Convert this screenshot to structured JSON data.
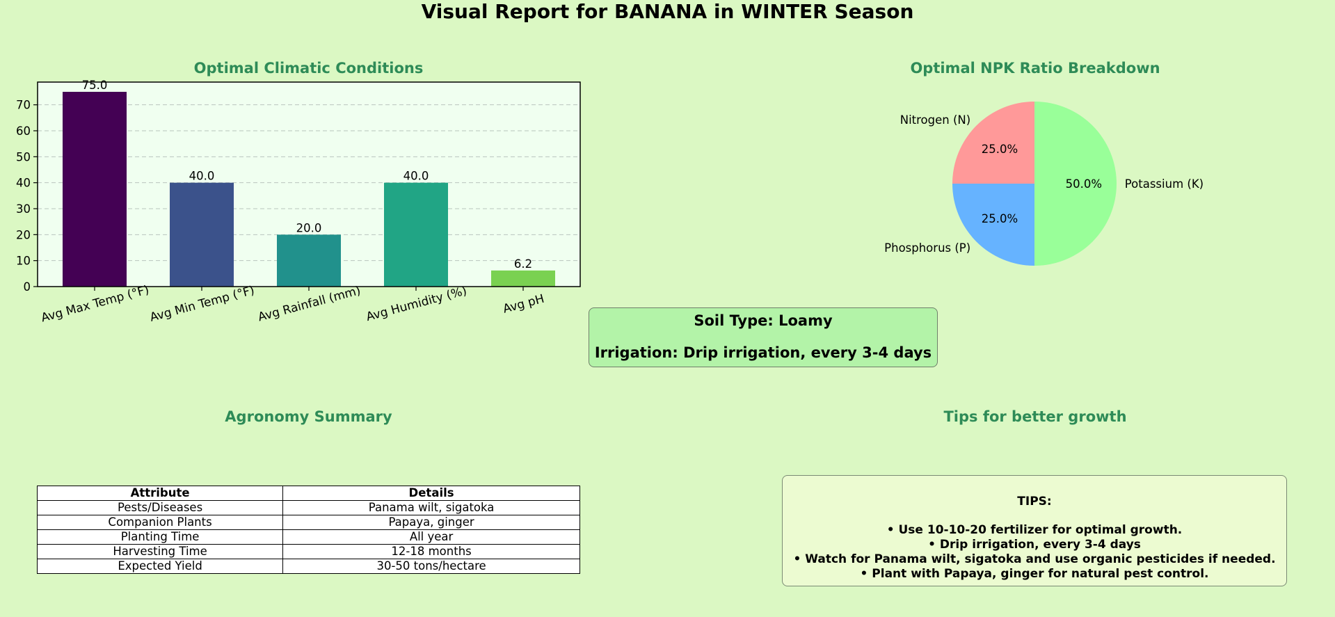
{
  "title": "Visual Report for BANANA in WINTER Season",
  "chart_data": [
    {
      "type": "bar",
      "title": "Optimal Climatic Conditions",
      "categories": [
        "Avg Max Temp (°F)",
        "Avg Min Temp (°F)",
        "Avg Rainfall (mm)",
        "Avg Humidity (%)",
        "Avg pH"
      ],
      "values": [
        75.0,
        40.0,
        20.0,
        40.0,
        6.2
      ],
      "value_labels": [
        "75.0",
        "40.0",
        "20.0",
        "40.0",
        "6.2"
      ],
      "yticks": [
        0,
        10,
        20,
        30,
        40,
        50,
        60,
        70
      ],
      "ylim": [
        0,
        78.75
      ],
      "grid": true,
      "colors": [
        "#440154",
        "#3b528b",
        "#21918c",
        "#21a585",
        "#7ad151"
      ],
      "background": "#f0fff0"
    },
    {
      "type": "pie",
      "title": "Optimal NPK Ratio Breakdown",
      "labels": [
        "Nitrogen (N)",
        "Phosphorus (P)",
        "Potassium (K)"
      ],
      "values": [
        25.0,
        25.0,
        50.0
      ],
      "pct_labels": [
        "25.0%",
        "25.0%",
        "50.0%"
      ],
      "colors": [
        "#ff9999",
        "#66b3ff",
        "#99ff99"
      ]
    }
  ],
  "info": {
    "soil": "Soil Type: Loamy",
    "irrigation": "Irrigation: Drip irrigation, every 3-4 days"
  },
  "summary": {
    "title": "Agronomy Summary",
    "headers": [
      "Attribute",
      "Details"
    ],
    "rows": [
      [
        "Pests/Diseases",
        "Panama wilt, sigatoka"
      ],
      [
        "Companion Plants",
        "Papaya, ginger"
      ],
      [
        "Planting Time",
        "All year"
      ],
      [
        "Harvesting Time",
        "12-18 months"
      ],
      [
        "Expected Yield",
        "30-50 tons/hectare"
      ]
    ]
  },
  "tips": {
    "panel_title": "Tips for better growth",
    "heading": "TIPS:",
    "items": [
      "• Use 10-10-20 fertilizer for optimal growth.",
      "• Drip irrigation, every 3-4 days",
      "• Watch for Panama wilt, sigatoka and use organic pesticides if needed.",
      "• Plant with Papaya, ginger for natural pest control."
    ]
  }
}
